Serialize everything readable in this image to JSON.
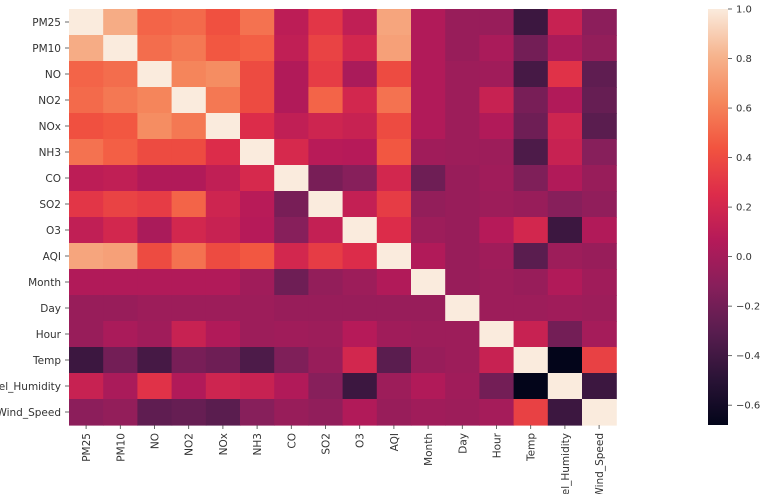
{
  "chart_data": {
    "type": "heatmap",
    "title": "",
    "xlabel": "",
    "ylabel": "",
    "rows": [
      "PM25",
      "PM10",
      "NO",
      "NO2",
      "NOx",
      "NH3",
      "CO",
      "SO2",
      "O3",
      "AQI",
      "Month",
      "Day",
      "Hour",
      "Temp",
      "Rel_Humidity",
      "Wind_Speed"
    ],
    "columns": [
      "PM25",
      "PM10",
      "NO",
      "NO2",
      "NOx",
      "NH3",
      "CO",
      "SO2",
      "O3",
      "AQI",
      "Month",
      "Day",
      "Hour",
      "Temp",
      "Rel_Humidity",
      "Wind_Speed"
    ],
    "values": [
      [
        1.0,
        0.78,
        0.5,
        0.52,
        0.42,
        0.55,
        0.1,
        0.3,
        0.12,
        0.75,
        0.05,
        -0.05,
        -0.05,
        -0.42,
        0.15,
        -0.1
      ],
      [
        0.78,
        1.0,
        0.53,
        0.57,
        0.45,
        0.48,
        0.12,
        0.36,
        0.2,
        0.73,
        0.05,
        -0.05,
        0.02,
        -0.2,
        0.02,
        -0.07
      ],
      [
        0.5,
        0.53,
        1.0,
        0.62,
        0.65,
        0.4,
        0.05,
        0.33,
        0.02,
        0.4,
        0.05,
        -0.03,
        -0.02,
        -0.38,
        0.28,
        -0.28
      ],
      [
        0.52,
        0.57,
        0.62,
        1.0,
        0.57,
        0.4,
        0.05,
        0.5,
        0.2,
        0.55,
        0.05,
        -0.03,
        0.15,
        -0.18,
        0.05,
        -0.25
      ],
      [
        0.42,
        0.45,
        0.65,
        0.57,
        1.0,
        0.25,
        0.12,
        0.18,
        0.15,
        0.4,
        0.05,
        -0.03,
        0.05,
        -0.22,
        0.18,
        -0.3
      ],
      [
        0.55,
        0.48,
        0.4,
        0.4,
        0.25,
        1.0,
        0.22,
        0.08,
        0.07,
        0.45,
        -0.02,
        -0.03,
        -0.03,
        -0.35,
        0.15,
        -0.12
      ],
      [
        0.1,
        0.12,
        0.05,
        0.05,
        0.12,
        0.22,
        1.0,
        -0.18,
        -0.12,
        0.2,
        -0.22,
        -0.05,
        -0.02,
        -0.15,
        0.05,
        -0.05
      ],
      [
        0.3,
        0.36,
        0.33,
        0.5,
        0.18,
        0.08,
        -0.18,
        1.0,
        0.13,
        0.33,
        -0.07,
        -0.05,
        -0.03,
        -0.05,
        -0.12,
        -0.08
      ],
      [
        0.12,
        0.2,
        0.02,
        0.2,
        0.15,
        0.07,
        -0.12,
        0.13,
        1.0,
        0.25,
        -0.03,
        -0.05,
        0.07,
        0.2,
        -0.42,
        0.05
      ],
      [
        0.75,
        0.73,
        0.4,
        0.55,
        0.4,
        0.45,
        0.2,
        0.33,
        0.25,
        1.0,
        0.05,
        -0.05,
        -0.02,
        -0.3,
        -0.03,
        -0.05
      ],
      [
        0.05,
        0.05,
        0.05,
        0.05,
        0.05,
        -0.02,
        -0.22,
        -0.07,
        -0.03,
        0.05,
        1.0,
        -0.05,
        -0.03,
        -0.05,
        0.05,
        -0.02
      ],
      [
        -0.05,
        -0.05,
        -0.03,
        -0.03,
        -0.03,
        -0.03,
        -0.05,
        -0.05,
        -0.05,
        -0.05,
        -0.05,
        1.0,
        -0.03,
        -0.03,
        -0.02,
        -0.03
      ],
      [
        -0.05,
        0.02,
        -0.02,
        0.15,
        0.05,
        -0.03,
        -0.02,
        -0.03,
        0.07,
        -0.02,
        -0.03,
        -0.03,
        1.0,
        0.15,
        -0.2,
        0.0
      ],
      [
        -0.42,
        -0.2,
        -0.38,
        -0.18,
        -0.22,
        -0.35,
        -0.15,
        -0.05,
        0.2,
        -0.3,
        -0.05,
        -0.03,
        0.15,
        1.0,
        -0.68,
        0.35
      ],
      [
        0.15,
        0.02,
        0.28,
        0.05,
        0.18,
        0.15,
        0.05,
        -0.12,
        -0.42,
        -0.03,
        0.05,
        -0.02,
        -0.2,
        -0.68,
        1.0,
        -0.42
      ],
      [
        -0.1,
        -0.07,
        -0.28,
        -0.25,
        -0.3,
        -0.12,
        -0.05,
        -0.08,
        0.05,
        -0.05,
        -0.02,
        -0.03,
        0.0,
        0.35,
        -0.42,
        1.0
      ]
    ],
    "colorbar": {
      "vmin": -0.68,
      "vmax": 1.0,
      "ticks": [
        "1.0",
        "0.8",
        "0.6",
        "0.4",
        "0.2",
        "0.0",
        "−0.2",
        "−0.4",
        "−0.6"
      ]
    },
    "colormap": [
      "#03051a",
      "#2a1336",
      "#581d4f",
      "#871f5b",
      "#b51a59",
      "#dd2c4a",
      "#f2543f",
      "#f5875c",
      "#f6b48e",
      "#faebdd"
    ]
  }
}
